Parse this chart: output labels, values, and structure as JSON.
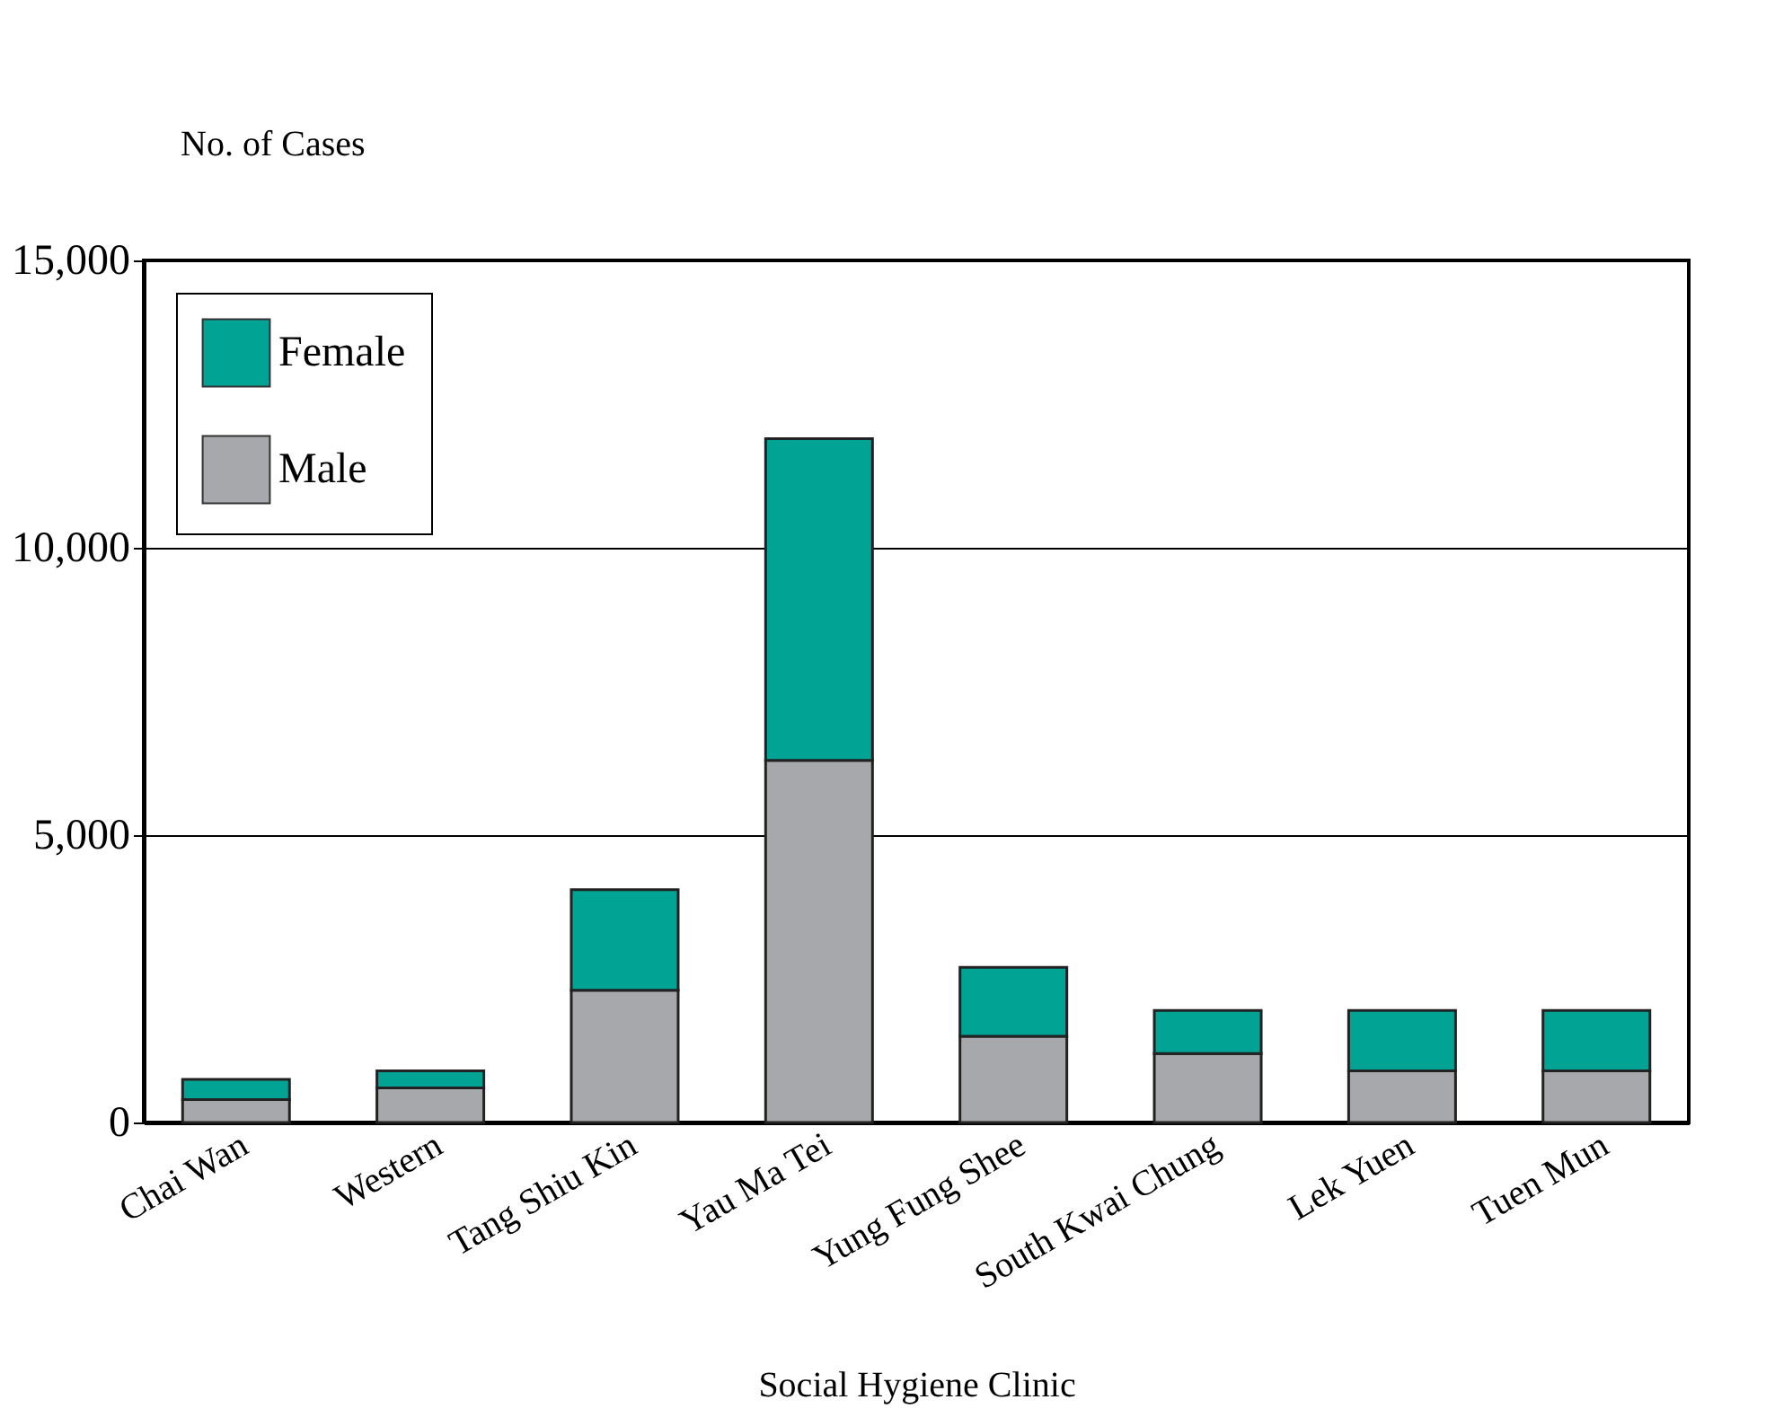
{
  "chart_data": {
    "type": "bar",
    "stacked": true,
    "xlabel": "Social Hygiene Clinic",
    "ylabel": "No. of Cases",
    "categories": [
      "Chai Wan",
      "Western",
      "Tang Shiu Kin",
      "Yau Ma Tei",
      "Yung Fung Shee",
      "South Kwai Chung",
      "Lek Yuen",
      "Tuen Mun"
    ],
    "series": [
      {
        "name": "Male",
        "color": "#a7a8ab",
        "values": [
          400,
          600,
          2300,
          6300,
          1500,
          1200,
          900,
          900
        ]
      },
      {
        "name": "Female",
        "color": "#00a394",
        "values": [
          350,
          300,
          1750,
          5600,
          1200,
          750,
          1050,
          1050
        ]
      }
    ],
    "ylim": [
      0,
      15000
    ],
    "yticks": [
      0,
      {
        "value": 5000,
        "label": "5,000"
      },
      {
        "value": 10000,
        "label": "10,000"
      },
      {
        "value": 15000,
        "label": "15,000"
      }
    ],
    "grid": "y",
    "legend": "top left"
  }
}
